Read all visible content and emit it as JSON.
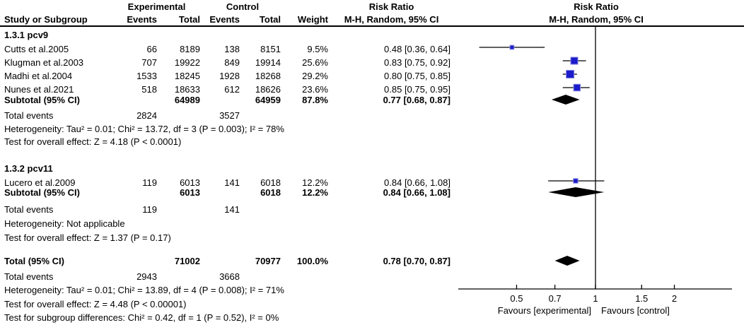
{
  "header": {
    "group_experimental": "Experimental",
    "group_control": "Control",
    "risk_ratio": "Risk Ratio",
    "mh_random": "M-H, Random, 95% CI",
    "study_or_subgroup": "Study or Subgroup",
    "events": "Events",
    "total": "Total",
    "weight": "Weight"
  },
  "chart_data": {
    "type": "forest",
    "scale": "log",
    "effect_measure": "Risk Ratio",
    "method": "M-H, Random, 95% CI",
    "axis": {
      "ticks": [
        0.5,
        0.7,
        1,
        1.5,
        2
      ],
      "tick_labels": [
        "0.5",
        "0.7",
        "1",
        "1.5",
        "2"
      ],
      "null_value": 1,
      "xmin": 0.3,
      "xmax": 3.3,
      "favours_left": "Favours [experimental]",
      "favours_right": "Favours [control]"
    },
    "colors": {
      "square": "#1b1bcb",
      "square_halo": "#8d8de2",
      "diamond": "#000000",
      "line": "#000000"
    },
    "groups": [
      {
        "label": "1.3.1 pcv9",
        "studies": [
          {
            "study": "Cutts et al.2005",
            "events1": "66",
            "total1": "8189",
            "events2": "138",
            "total2": "8151",
            "weight": "9.5%",
            "rr_text": "0.48 [0.36, 0.64]",
            "rr": 0.48,
            "lo": 0.36,
            "hi": 0.64,
            "weight_pct": 9.5
          },
          {
            "study": "Klugman et al.2003",
            "events1": "707",
            "total1": "19922",
            "events2": "849",
            "total2": "19914",
            "weight": "25.6%",
            "rr_text": "0.83 [0.75, 0.92]",
            "rr": 0.83,
            "lo": 0.75,
            "hi": 0.92,
            "weight_pct": 25.6
          },
          {
            "study": "Madhi et al.2004",
            "events1": "1533",
            "total1": "18245",
            "events2": "1928",
            "total2": "18268",
            "weight": "29.2%",
            "rr_text": "0.80 [0.75, 0.85]",
            "rr": 0.8,
            "lo": 0.75,
            "hi": 0.85,
            "weight_pct": 29.2
          },
          {
            "study": "Nunes et al.2021",
            "events1": "518",
            "total1": "18633",
            "events2": "612",
            "total2": "18626",
            "weight": "23.6%",
            "rr_text": "0.85 [0.75, 0.95]",
            "rr": 0.85,
            "lo": 0.75,
            "hi": 0.95,
            "weight_pct": 23.6
          }
        ],
        "subtotal": {
          "label": "Subtotal (95% CI)",
          "total1": "64989",
          "total2": "64959",
          "weight": "87.8%",
          "rr_text": "0.77 [0.68, 0.87]",
          "rr": 0.77,
          "lo": 0.68,
          "hi": 0.87
        },
        "total_events": {
          "label": "Total events",
          "events1": "2824",
          "events2": "3527"
        },
        "heterogeneity": "Heterogeneity: Tau² = 0.01; Chi² = 13.72, df = 3 (P = 0.003); I² = 78%",
        "overall_effect": "Test for overall effect: Z = 4.18 (P < 0.0001)"
      },
      {
        "label": "1.3.2 pcv11",
        "studies": [
          {
            "study": "Lucero et al.2009",
            "events1": "119",
            "total1": "6013",
            "events2": "141",
            "total2": "6018",
            "weight": "12.2%",
            "rr_text": "0.84 [0.66, 1.08]",
            "rr": 0.84,
            "lo": 0.66,
            "hi": 1.08,
            "weight_pct": 12.2
          }
        ],
        "subtotal": {
          "label": "Subtotal (95% CI)",
          "total1": "6013",
          "total2": "6018",
          "weight": "12.2%",
          "rr_text": "0.84 [0.66, 1.08]",
          "rr": 0.84,
          "lo": 0.66,
          "hi": 1.08
        },
        "total_events": {
          "label": "Total events",
          "events1": "119",
          "events2": "141"
        },
        "heterogeneity": "Heterogeneity: Not applicable",
        "overall_effect": "Test for overall effect: Z = 1.37 (P = 0.17)"
      }
    ],
    "total": {
      "label": "Total (95% CI)",
      "total1": "71002",
      "total2": "70977",
      "weight": "100.0%",
      "rr_text": "0.78 [0.70, 0.87]",
      "rr": 0.78,
      "lo": 0.7,
      "hi": 0.87,
      "total_events": {
        "label": "Total events",
        "events1": "2943",
        "events2": "3668"
      },
      "heterogeneity": "Heterogeneity: Tau² = 0.01; Chi² = 13.89, df = 4 (P = 0.008); I² = 71%",
      "overall_effect": "Test for overall effect: Z = 4.48 (P < 0.00001)",
      "subgroup_diff": "Test for subgroup differences: Chi² = 0.42, df = 1 (P = 0.52), I² = 0%"
    }
  }
}
